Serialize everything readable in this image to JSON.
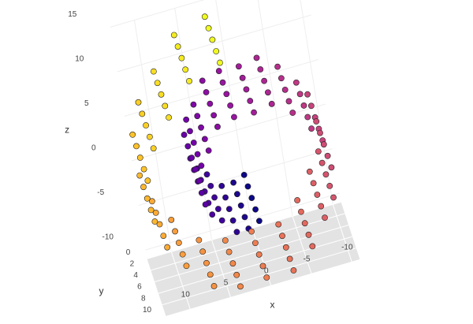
{
  "chart_data": {
    "type": "scatter3d",
    "xlabel": "x",
    "ylabel": "y",
    "zlabel": "z",
    "xlim": [
      -11,
      13
    ],
    "ylim": [
      0,
      10
    ],
    "zlim": [
      -11,
      15
    ],
    "xticks": [
      -10,
      -5,
      0,
      5,
      10
    ],
    "yticks": [
      0,
      2,
      4,
      6,
      8,
      10
    ],
    "zticks": [
      -10,
      -5,
      0,
      5,
      10,
      15
    ],
    "colorscale": [
      "#0d0887",
      "#46039f",
      "#7201a8",
      "#9c179e",
      "#bd3786",
      "#d8576b",
      "#ed7953",
      "#fb9f3a",
      "#fdca26",
      "#f0f921"
    ],
    "marker_line_color": "#222222",
    "x": [
      0,
      0,
      0,
      0,
      0,
      1.48,
      1.48,
      1.48,
      1.48,
      1.48,
      3.0,
      3.0,
      3.0,
      3.0,
      3.0,
      4.39,
      4.39,
      4.39,
      4.39,
      4.39,
      5.51,
      5.51,
      5.51,
      5.51,
      5.51,
      6.19,
      6.19,
      6.19,
      6.19,
      6.19,
      6.34,
      6.34,
      6.34,
      6.34,
      6.34,
      5.88,
      5.88,
      5.88,
      5.88,
      5.88,
      4.8,
      4.8,
      4.8,
      4.8,
      4.8,
      3.16,
      3.16,
      3.16,
      3.16,
      3.16,
      1.09,
      1.09,
      1.09,
      1.09,
      1.09,
      -1.27,
      -1.27,
      -1.27,
      -1.27,
      -1.27,
      -3.68,
      -3.68,
      -3.68,
      -3.68,
      -3.68,
      -5.92,
      -5.92,
      -5.92,
      -5.92,
      -5.92,
      -7.77,
      -7.77,
      -7.77,
      -7.77,
      -7.77,
      -9.01,
      -9.01,
      -9.01,
      -9.01,
      -9.01,
      -9.47,
      -9.47,
      -9.47,
      -9.47,
      -9.47,
      -9.08,
      -9.08,
      -9.08,
      -9.08,
      -9.08,
      -7.81,
      -7.81,
      -7.81,
      -7.81,
      -7.81,
      -5.74,
      -5.74,
      -5.74,
      -5.74,
      -5.74,
      -2.99,
      -2.99,
      -2.99,
      -2.99,
      -2.99,
      0.19,
      0.19,
      0.19,
      0.19,
      0.19,
      3.53,
      3.53,
      3.53,
      3.53,
      3.53,
      6.71,
      6.71,
      6.71,
      6.71,
      6.71,
      9.46,
      9.46,
      9.46,
      9.46,
      9.46,
      11.45,
      11.45,
      11.45,
      11.45,
      11.45,
      12.5,
      12.5,
      12.5,
      12.5,
      12.5,
      12.43,
      12.43,
      12.43,
      12.43,
      12.43,
      11.21,
      11.21,
      11.21,
      11.21,
      11.21,
      8.89,
      8.89,
      8.89,
      8.89,
      8.89,
      5.65,
      5.65,
      5.65,
      5.65,
      5.65,
      1.74,
      1.74,
      1.74,
      1.74,
      1.74
    ],
    "y": [
      0.5,
      2.5,
      4.5,
      6.5,
      8.5,
      1.1,
      3.1,
      5.1,
      7.1,
      9.1,
      1.7,
      3.7,
      5.7,
      7.7,
      9.7,
      0.5,
      2.5,
      4.5,
      6.5,
      8.5,
      1.1,
      3.1,
      5.1,
      7.1,
      9.1,
      1.7,
      3.7,
      5.7,
      7.7,
      9.7,
      0.5,
      2.5,
      4.5,
      6.5,
      8.5,
      1.1,
      3.1,
      5.1,
      7.1,
      9.1,
      1.7,
      3.7,
      5.7,
      7.7,
      9.7,
      0.5,
      2.5,
      4.5,
      6.5,
      8.5,
      1.1,
      3.1,
      5.1,
      7.1,
      9.1,
      1.7,
      3.7,
      5.7,
      7.7,
      9.7,
      0.5,
      2.5,
      4.5,
      6.5,
      8.5,
      1.1,
      3.1,
      5.1,
      7.1,
      9.1,
      1.7,
      3.7,
      5.7,
      7.7,
      9.7,
      0.5,
      2.5,
      4.5,
      6.5,
      8.5,
      1.1,
      3.1,
      5.1,
      7.1,
      9.1,
      1.7,
      3.7,
      5.7,
      7.7,
      9.7,
      0.5,
      2.5,
      4.5,
      6.5,
      8.5,
      1.1,
      3.1,
      5.1,
      7.1,
      9.1,
      1.7,
      3.7,
      5.7,
      7.7,
      9.7,
      0.5,
      2.5,
      4.5,
      6.5,
      8.5,
      1.1,
      3.1,
      5.1,
      7.1,
      9.1,
      1.7,
      3.7,
      5.7,
      7.7,
      9.7,
      0.5,
      2.5,
      4.5,
      6.5,
      8.5,
      1.1,
      3.1,
      5.1,
      7.1,
      9.1,
      1.7,
      3.7,
      5.7,
      7.7,
      9.7,
      0.5,
      2.5,
      4.5,
      6.5,
      8.5,
      1.1,
      3.1,
      5.1,
      7.1,
      9.1,
      1.7,
      3.7,
      5.7,
      7.7,
      9.7,
      0.5,
      2.5,
      4.5,
      6.5,
      8.5,
      1.1,
      3.1,
      5.1,
      7.1,
      9.1
    ],
    "z": [
      -4.71,
      -4.71,
      -4.71,
      -4.71,
      -4.71,
      -4.79,
      -4.79,
      -4.79,
      -4.79,
      -4.79,
      -4.38,
      -4.38,
      -4.38,
      -4.38,
      -4.38,
      -3.49,
      -3.49,
      -3.49,
      -3.49,
      -3.49,
      -2.14,
      -2.14,
      -2.14,
      -2.14,
      -2.14,
      -0.44,
      -0.44,
      -0.44,
      -0.44,
      -0.44,
      1.48,
      1.48,
      1.48,
      1.48,
      1.48,
      3.44,
      3.44,
      3.44,
      3.44,
      3.44,
      5.24,
      5.24,
      5.24,
      5.24,
      5.24,
      6.7,
      6.7,
      6.7,
      6.7,
      6.7,
      7.63,
      7.63,
      7.63,
      7.63,
      7.63,
      7.91,
      7.91,
      7.91,
      7.91,
      7.91,
      7.45,
      7.45,
      7.45,
      7.45,
      7.45,
      6.25,
      6.25,
      6.25,
      6.25,
      6.25,
      4.37,
      4.37,
      4.37,
      4.37,
      4.37,
      1.94,
      1.94,
      1.94,
      1.94,
      1.94,
      -0.83,
      -0.83,
      -0.83,
      -0.83,
      -0.83,
      -3.71,
      -3.71,
      -3.71,
      -3.71,
      -3.71,
      -6.42,
      -6.42,
      -6.42,
      -6.42,
      -6.42,
      -8.69,
      -8.69,
      -8.69,
      -8.69,
      -8.69,
      -10.28,
      -10.28,
      -10.28,
      -10.28,
      -10.28,
      -11.01,
      -11.01,
      -11.01,
      -11.01,
      -11.01,
      -10.74,
      -10.74,
      -10.74,
      -10.74,
      -10.74,
      -9.47,
      -9.47,
      -9.47,
      -9.47,
      -9.47,
      -7.24,
      -7.24,
      -7.24,
      -7.24,
      -7.24,
      -4.24,
      -4.24,
      -4.24,
      -4.24,
      -4.24,
      -0.68,
      -0.68,
      -0.68,
      -0.68,
      -0.68,
      3.11,
      3.11,
      3.11,
      3.11,
      3.11,
      6.8,
      6.8,
      6.8,
      6.8,
      6.8,
      10.04,
      10.04,
      10.04,
      10.04,
      10.04,
      12.49,
      12.49,
      12.49,
      12.49,
      12.49,
      13.9,
      13.9,
      13.9,
      13.9,
      13.9
    ]
  }
}
